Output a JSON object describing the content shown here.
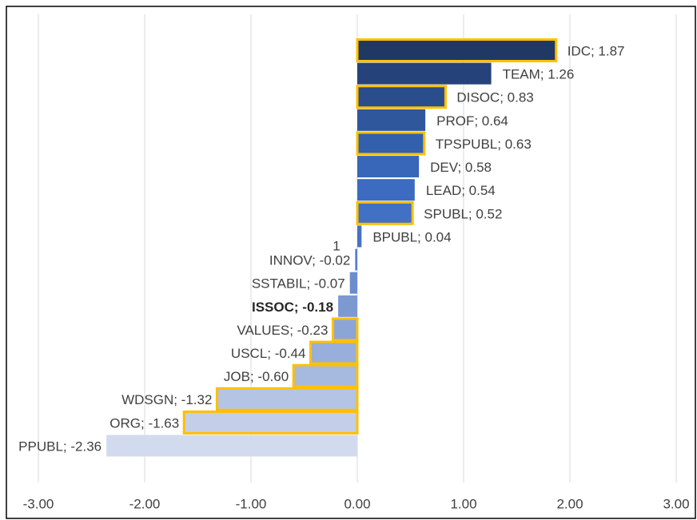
{
  "chart_data": {
    "type": "barh",
    "categories": [
      "IDC",
      "TEAM",
      "DISOC",
      "PROF",
      "TPSPUBL",
      "DEV",
      "LEAD",
      "SPUBL",
      "BPUBL",
      "INNOV",
      "SSTABIL",
      "ISSOC",
      "VALUES",
      "USCL",
      "JOB",
      "WDSGN",
      "ORG",
      "PPUBL"
    ],
    "values": [
      1.87,
      1.26,
      0.83,
      0.64,
      0.63,
      0.58,
      0.54,
      0.52,
      0.04,
      -0.02,
      -0.07,
      -0.18,
      -0.23,
      -0.44,
      -0.6,
      -1.32,
      -1.63,
      -2.36
    ],
    "value_labels": [
      "IDC; 1.87",
      "TEAM; 1.26",
      "DISOC; 0.83",
      "PROF; 0.64",
      "TPSPUBL; 0.63",
      "DEV; 0.58",
      "LEAD; 0.54",
      "SPUBL; 0.52",
      "BPUBL; 0.04",
      "INNOV; -0.02",
      "SSTABIL; -0.07",
      "ISSOC; -0.18",
      "VALUES; -0.23",
      "USCL; -0.44",
      "JOB; -0.60",
      "WDSGN; -1.32",
      "ORG; -1.63",
      "PPUBL; -2.36"
    ],
    "colors": [
      "#203864",
      "#25437a",
      "#2a4d8c",
      "#2f579c",
      "#3360ad",
      "#3866b8",
      "#3c6bc0",
      "#4170c4",
      "#4472c4",
      "#5a7fc8",
      "#6c8ccd",
      "#7d99d2",
      "#8ca5d7",
      "#99afdb",
      "#a6b9df",
      "#b4c4e4",
      "#c3cfe9",
      "#d2dbee"
    ],
    "outlined": [
      true,
      false,
      true,
      false,
      true,
      false,
      false,
      true,
      false,
      false,
      false,
      false,
      true,
      true,
      true,
      true,
      true,
      false
    ],
    "outline_color": "#ffc000",
    "bold_label": "ISSOC",
    "annotation": "1",
    "xlim": [
      -3,
      3
    ],
    "xticks": [
      {
        "value": -3,
        "label": "-3.00"
      },
      {
        "value": -2,
        "label": "-2.00"
      },
      {
        "value": -1,
        "label": "-1.00"
      },
      {
        "value": 0,
        "label": "0.00"
      },
      {
        "value": 1,
        "label": "1.00"
      },
      {
        "value": 2,
        "label": "2.00"
      },
      {
        "value": 3,
        "label": "3.00"
      }
    ],
    "grid": true
  }
}
